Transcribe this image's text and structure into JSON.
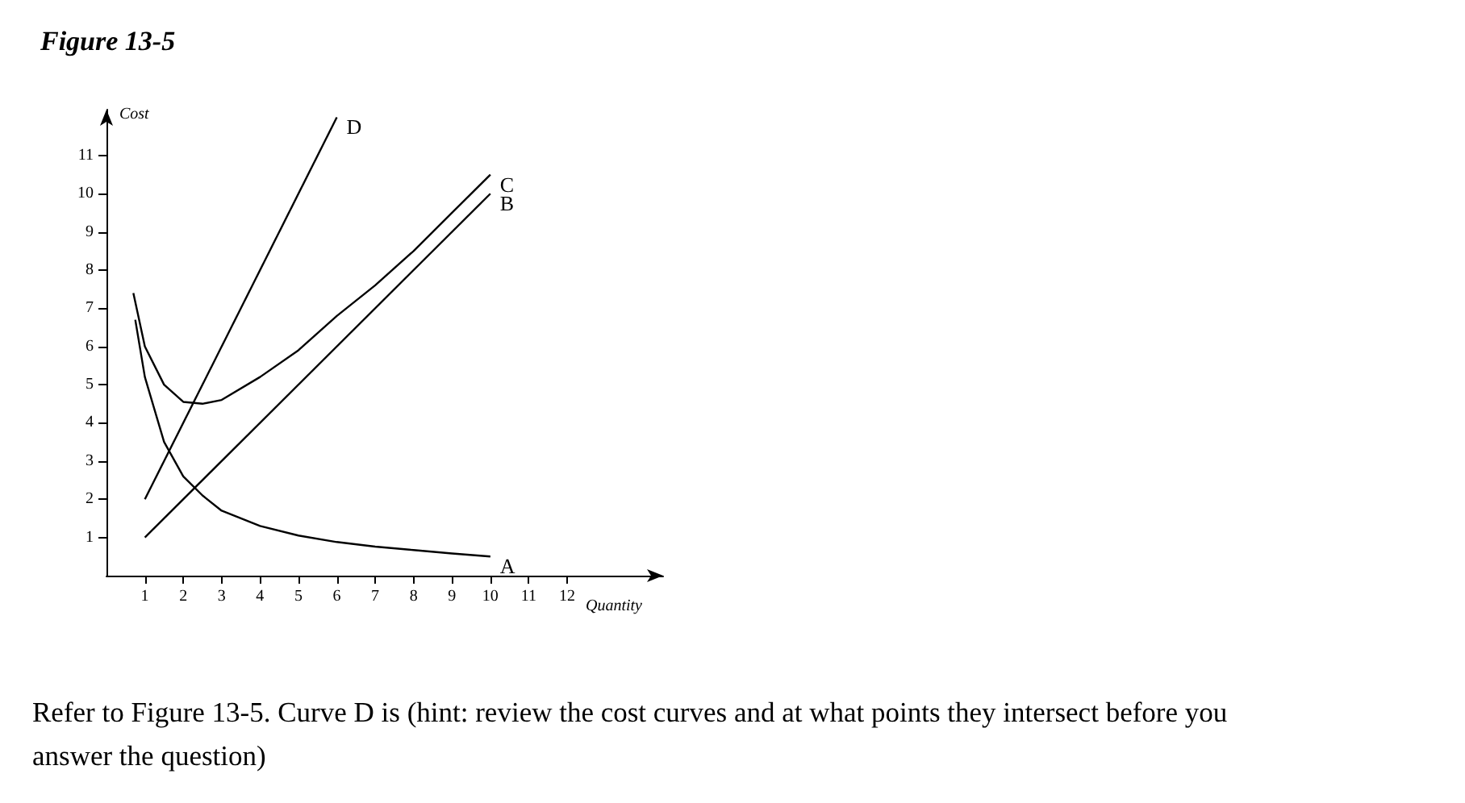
{
  "chart_data": {
    "type": "line",
    "title": "Figure 13-5",
    "xlabel": "Quantity",
    "ylabel": "Cost",
    "xlim": [
      0,
      14.5
    ],
    "xticks": [
      1,
      2,
      3,
      4,
      5,
      6,
      7,
      8,
      9,
      10,
      11,
      12
    ],
    "ylim": [
      0,
      12.2
    ],
    "yticks": [
      1,
      2,
      3,
      4,
      5,
      6,
      7,
      8,
      9,
      10,
      11
    ],
    "series": [
      {
        "name": "A",
        "color": "#000000",
        "x": [
          0.75,
          1,
          1.5,
          2,
          2.5,
          3,
          4,
          5,
          6,
          7,
          8,
          9,
          10
        ],
        "values": [
          6.7,
          5.2,
          3.5,
          2.6,
          2.1,
          1.7,
          1.3,
          1.05,
          0.88,
          0.76,
          0.67,
          0.58,
          0.5
        ]
      },
      {
        "name": "B",
        "color": "#000000",
        "x": [
          1,
          10
        ],
        "values": [
          1,
          10
        ]
      },
      {
        "name": "C",
        "color": "#000000",
        "x": [
          0.7,
          1,
          1.5,
          2,
          2.5,
          3,
          4,
          5,
          6,
          7,
          8,
          9,
          10
        ],
        "values": [
          7.4,
          6.0,
          5.0,
          4.55,
          4.5,
          4.6,
          5.2,
          5.9,
          6.8,
          7.6,
          8.5,
          9.5,
          10.5
        ]
      },
      {
        "name": "D",
        "color": "#000000",
        "x": [
          1,
          6
        ],
        "values": [
          2,
          12
        ]
      }
    ],
    "annotations": [
      "Refer to Figure 13-5. Curve D is (hint: review the cost curves and at what points they intersect before you answer the question)"
    ],
    "grid": false,
    "marker": "none",
    "line_style": "solid"
  }
}
